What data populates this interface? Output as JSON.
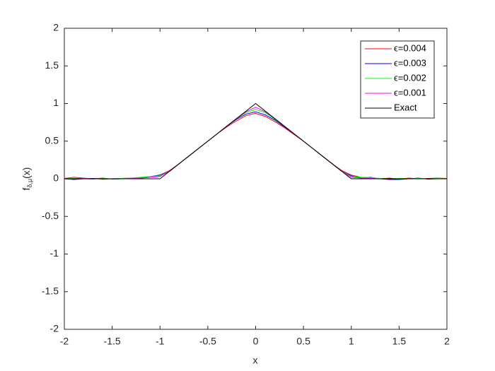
{
  "chart_data": {
    "type": "line",
    "xlabel": "x",
    "ylabel": "f",
    "ylabel_subscript": "δ,μ",
    "ylabel_suffix": "(x)",
    "x": [
      -2,
      -1.9,
      -1.8,
      -1.7,
      -1.6,
      -1.5,
      -1.4,
      -1.3,
      -1.2,
      -1.1,
      -1,
      -0.9,
      -0.8,
      -0.7,
      -0.6,
      -0.5,
      -0.4,
      -0.3,
      -0.2,
      -0.1,
      0,
      0.1,
      0.2,
      0.3,
      0.4,
      0.5,
      0.6,
      0.7,
      0.8,
      0.9,
      1,
      1.1,
      1.2,
      1.3,
      1.4,
      1.5,
      1.6,
      1.7,
      1.8,
      1.9,
      2
    ],
    "series": [
      {
        "name": "ϵ=0.004",
        "color": "#ff0000",
        "values": [
          0.005,
          0.02,
          0.01,
          0.0,
          0.01,
          -0.005,
          0.0,
          0.005,
          0.01,
          0.02,
          0.05,
          0.11,
          0.2,
          0.3,
          0.4,
          0.5,
          0.6,
          0.69,
          0.77,
          0.84,
          0.87,
          0.83,
          0.76,
          0.68,
          0.59,
          0.5,
          0.4,
          0.3,
          0.2,
          0.11,
          0.05,
          0.02,
          0.01,
          0.0,
          0.01,
          -0.005,
          0.01,
          0.0,
          0.005,
          0.01,
          0.005
        ]
      },
      {
        "name": "ϵ=0.003",
        "color": "#0000ff",
        "values": [
          0.0,
          -0.01,
          0.0,
          0.005,
          -0.005,
          0.0,
          0.005,
          0.01,
          0.015,
          0.03,
          0.05,
          0.1,
          0.2,
          0.3,
          0.4,
          0.5,
          0.6,
          0.7,
          0.79,
          0.86,
          0.89,
          0.85,
          0.78,
          0.69,
          0.6,
          0.5,
          0.4,
          0.3,
          0.2,
          0.1,
          0.04,
          0.01,
          0.02,
          0.0,
          -0.01,
          -0.01,
          0.0,
          0.01,
          -0.005,
          0.0,
          0.0
        ]
      },
      {
        "name": "ϵ=0.002",
        "color": "#00ff00",
        "values": [
          0.0,
          0.005,
          0.0,
          -0.005,
          0.005,
          0.0,
          0.005,
          0.01,
          0.02,
          0.03,
          0.04,
          0.1,
          0.2,
          0.3,
          0.4,
          0.5,
          0.6,
          0.7,
          0.8,
          0.88,
          0.92,
          0.88,
          0.79,
          0.7,
          0.6,
          0.5,
          0.4,
          0.3,
          0.2,
          0.1,
          0.03,
          0.02,
          0.015,
          0.005,
          0.0,
          0.005,
          0.0,
          0.005,
          0.0,
          0.005,
          0.0
        ]
      },
      {
        "name": "ϵ=0.001",
        "color": "#ff00ff",
        "values": [
          0.0,
          0.0,
          0.005,
          0.0,
          0.0,
          0.0,
          0.0,
          0.005,
          0.01,
          0.02,
          0.03,
          0.1,
          0.2,
          0.3,
          0.4,
          0.5,
          0.6,
          0.7,
          0.8,
          0.89,
          0.95,
          0.89,
          0.8,
          0.7,
          0.6,
          0.5,
          0.4,
          0.3,
          0.2,
          0.1,
          0.02,
          0.01,
          0.005,
          0.0,
          0.0,
          0.0,
          0.0,
          0.0,
          0.0,
          0.0,
          0.0
        ]
      },
      {
        "name": "Exact",
        "color": "#000000",
        "values": [
          0,
          0,
          0,
          0,
          0,
          0,
          0,
          0,
          0,
          0,
          0,
          0.1,
          0.2,
          0.3,
          0.4,
          0.5,
          0.6,
          0.7,
          0.8,
          0.9,
          1,
          0.9,
          0.8,
          0.7,
          0.6,
          0.5,
          0.4,
          0.3,
          0.2,
          0.1,
          0,
          0,
          0,
          0,
          0,
          0,
          0,
          0,
          0,
          0,
          0
        ]
      }
    ],
    "xlim": [
      -2,
      2
    ],
    "ylim": [
      -2,
      2
    ],
    "xticks": [
      -2,
      -1.5,
      -1,
      -0.5,
      0,
      0.5,
      1,
      1.5,
      2
    ],
    "yticks": [
      -2,
      -1.5,
      -1,
      -0.5,
      0,
      0.5,
      1,
      1.5,
      2
    ],
    "legend": "upper right",
    "grid": false
  }
}
